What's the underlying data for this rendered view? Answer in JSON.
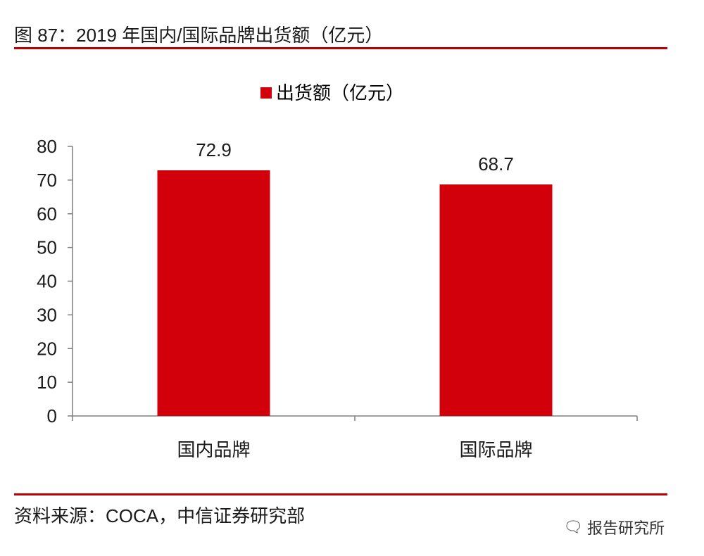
{
  "figure": {
    "title": "图 87：2019 年国内/国际品牌出货额（亿元）",
    "source": "资料来源：COCA，中信证券研究部",
    "watermark": "报告研究所",
    "watermark_icon": "wechat-icon"
  },
  "colors": {
    "bar": "#d2000a",
    "rule": "#c00000",
    "axis": "#7f7f7f"
  },
  "chart_data": {
    "type": "bar",
    "categories": [
      "国内品牌",
      "国际品牌"
    ],
    "series": [
      {
        "name": "出货额（亿元）",
        "values": [
          72.9,
          68.7
        ]
      }
    ],
    "data_labels": [
      "72.9",
      "68.7"
    ],
    "ylim": [
      0,
      80
    ],
    "yticks": [
      0,
      10,
      20,
      30,
      40,
      50,
      60,
      70,
      80
    ],
    "grid": false,
    "legend": "top-center"
  }
}
